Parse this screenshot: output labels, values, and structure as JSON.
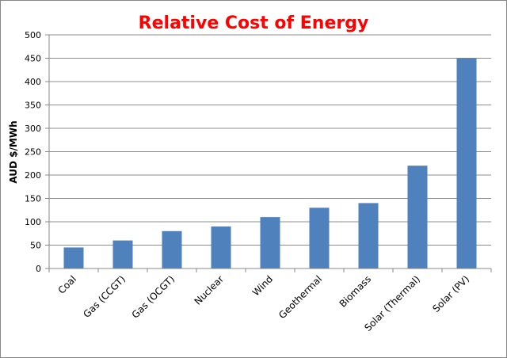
{
  "chart_data": {
    "type": "bar",
    "title": "Relative Cost of Energy",
    "xlabel": "",
    "ylabel": "AUD $/MWh",
    "categories": [
      "Coal",
      "Gas (CCGT)",
      "Gas (OCGT)",
      "Nuclear",
      "Wind",
      "Geothermal",
      "Biomass",
      "Solar (Thermal)",
      "Solar (PV)"
    ],
    "values": [
      45,
      60,
      80,
      90,
      110,
      130,
      140,
      220,
      450
    ],
    "ylim": [
      0,
      500
    ],
    "yticks": [
      0,
      50,
      100,
      150,
      200,
      250,
      300,
      350,
      400,
      450,
      500
    ],
    "grid": true,
    "legend": "none",
    "colors": {
      "bar": "#4f81bd",
      "title": "#ff0000",
      "grid": "#8c8c8c"
    }
  }
}
